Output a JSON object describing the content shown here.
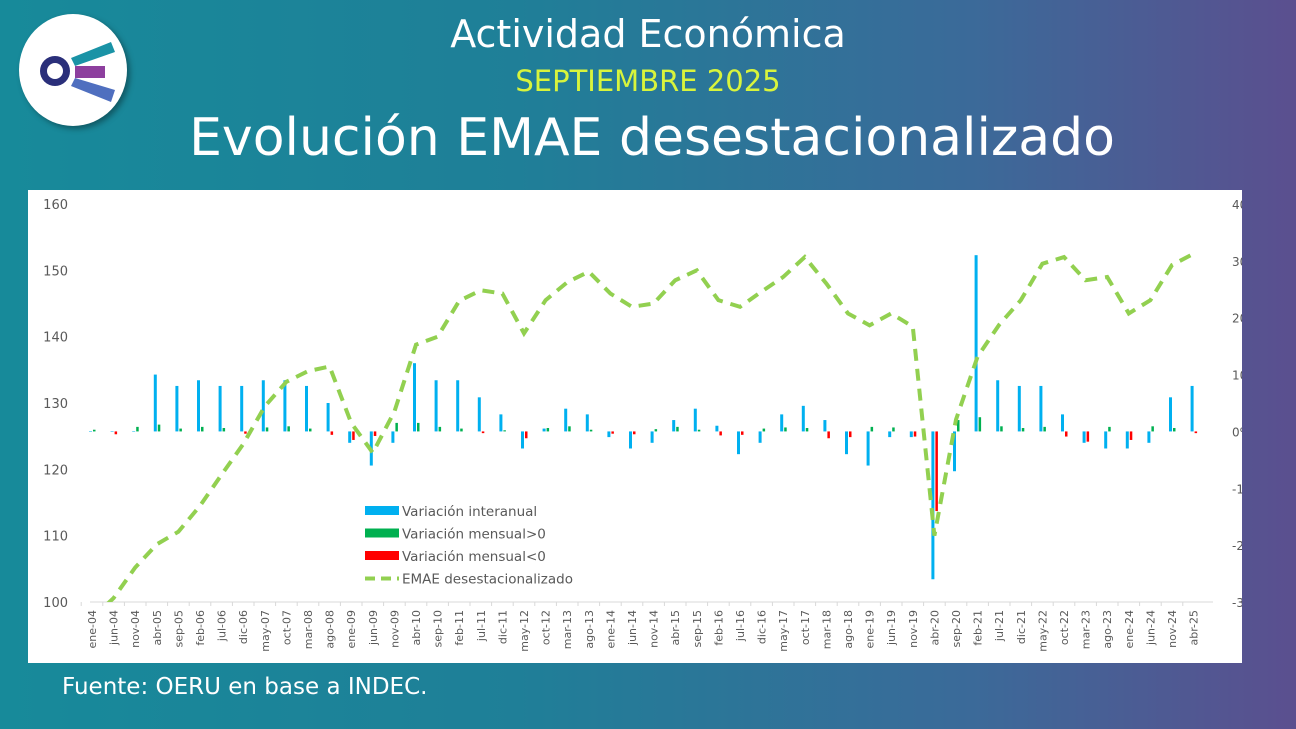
{
  "header": {
    "title": "Actividad Económica",
    "period": "SEPTIEMBRE 2025",
    "subtitle": "Evolución EMAE desestacionalizado"
  },
  "footer": {
    "source": "Fuente: OERU en base a INDEC."
  },
  "logo": {
    "icon": "oeru-logo"
  },
  "colors": {
    "interanual": "#00b0f0",
    "mensual_pos": "#00b050",
    "mensual_neg": "#ff0000",
    "emae": "#92d050"
  },
  "chart_data": {
    "type": "bar+line",
    "title": "",
    "categories": [
      "ene-04",
      "jun-04",
      "nov-04",
      "abr-05",
      "sep-05",
      "feb-06",
      "jul-06",
      "dic-06",
      "may-07",
      "oct-07",
      "mar-08",
      "ago-08",
      "ene-09",
      "jun-09",
      "nov-09",
      "abr-10",
      "sep-10",
      "feb-11",
      "jul-11",
      "dic-11",
      "may-12",
      "oct-12",
      "mar-13",
      "ago-13",
      "ene-14",
      "jun-14",
      "nov-14",
      "abr-15",
      "sep-15",
      "feb-16",
      "jul-16",
      "dic-16",
      "may-17",
      "oct-17",
      "mar-18",
      "ago-18",
      "ene-19",
      "jun-19",
      "nov-19",
      "abr-20",
      "sep-20",
      "feb-21",
      "jul-21",
      "dic-21",
      "may-22",
      "oct-22",
      "mar-23",
      "ago-23",
      "ene-24",
      "jun-24",
      "nov-24",
      "abr-25"
    ],
    "left_axis": {
      "min": 100,
      "max": 160,
      "ticks": [
        "160",
        "150",
        "140",
        "130",
        "120",
        "110",
        "100"
      ]
    },
    "right_axis": {
      "min": -30,
      "max": 40,
      "ticks": [
        "40%",
        "30%",
        "20%",
        "10%",
        "0%",
        "-10%",
        "-20%",
        "-30%"
      ]
    },
    "series": [
      {
        "name": "Variación interanual",
        "type": "bar",
        "axis": "right",
        "values": [
          0,
          0,
          0,
          10,
          8,
          9,
          8,
          8,
          9,
          9,
          8,
          5,
          -2,
          -6,
          -2,
          12,
          9,
          9,
          6,
          3,
          -3,
          0.5,
          4,
          3,
          -1,
          -3,
          -2,
          2,
          4,
          1,
          -4,
          -2,
          3,
          4.5,
          2,
          -4,
          -6,
          -1,
          -1,
          -26,
          -7,
          31,
          9,
          8,
          8,
          3,
          -2,
          -3,
          -3,
          -2,
          6,
          8
        ]
      },
      {
        "name": "Variación mensual>0 / Variación mensual<0",
        "type": "bar",
        "axis": "right",
        "values": [
          0.3,
          -0.5,
          0.8,
          1.2,
          0.5,
          0.8,
          0.6,
          -0.4,
          0.7,
          0.9,
          0.5,
          -0.6,
          -1.5,
          -0.8,
          1.5,
          1.5,
          0.8,
          0.5,
          -0.3,
          0.2,
          -1.2,
          0.6,
          0.9,
          0.3,
          -0.4,
          -0.5,
          0.4,
          0.8,
          0.3,
          -0.7,
          -0.6,
          0.5,
          0.7,
          0.6,
          -1.2,
          -1.0,
          0.8,
          0.7,
          -0.9,
          -14,
          2.0,
          2.5,
          0.9,
          0.6,
          0.8,
          -0.9,
          -1.8,
          0.8,
          -1.5,
          0.9,
          0.6,
          -0.3
        ]
      },
      {
        "name": "EMAE desestacionalizado",
        "type": "line",
        "axis": "left",
        "style": "dashed",
        "values": [
          97.5,
          100.6,
          105.2,
          108.7,
          110.6,
          114.5,
          119.2,
          123.8,
          129.5,
          133.2,
          134.8,
          135.5,
          127,
          122.5,
          128.7,
          138.8,
          140,
          145.4,
          147,
          146.5,
          140.5,
          145.5,
          148.2,
          149.8,
          146.5,
          144.5,
          145,
          148.5,
          150,
          145.5,
          144.5,
          146.8,
          149,
          152,
          148,
          143.5,
          141.7,
          143.5,
          141.5,
          110,
          127.5,
          137,
          141.8,
          145.5,
          151,
          152,
          148.5,
          149,
          143.5,
          145.5,
          150.8,
          152.5
        ]
      }
    ],
    "legend": {
      "position": "center-left",
      "items": [
        "Variación interanual",
        "Variación mensual>0",
        "Variación mensual<0",
        "EMAE desestacionalizado"
      ]
    },
    "grid": false
  }
}
